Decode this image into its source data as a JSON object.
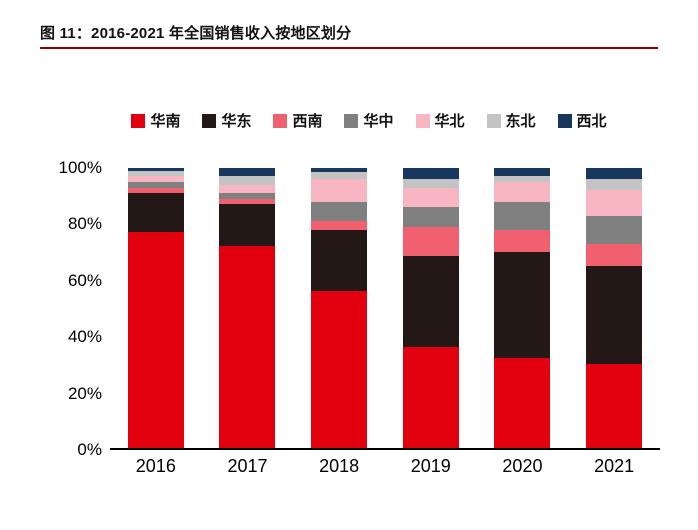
{
  "header": {
    "title": "图 11：2016-2021 年全国销售收入按地区划分",
    "rule_color": "#8b0000"
  },
  "chart_data": {
    "type": "bar",
    "stacked": true,
    "percent": true,
    "title": "2016-2021 年全国销售收入按地区划分",
    "xlabel": "",
    "ylabel": "",
    "ylim": [
      0,
      100
    ],
    "yticks": [
      "0%",
      "20%",
      "40%",
      "60%",
      "80%",
      "100%"
    ],
    "legend_position": "top",
    "grid": false,
    "categories": [
      "2016",
      "2017",
      "2018",
      "2019",
      "2020",
      "2021"
    ],
    "series": [
      {
        "name": "华南",
        "color": "#e2000f",
        "values": [
          77,
          72,
          56,
          36,
          32,
          30
        ]
      },
      {
        "name": "华东",
        "color": "#231815",
        "values": [
          14,
          15,
          22,
          32.5,
          38,
          35
        ]
      },
      {
        "name": "西南",
        "color": "#f1606e",
        "values": [
          2,
          2,
          3,
          10.5,
          8,
          8
        ]
      },
      {
        "name": "华中",
        "color": "#808080",
        "values": [
          2,
          2,
          7,
          7,
          10,
          10
        ]
      },
      {
        "name": "华北",
        "color": "#f8b5c2",
        "values": [
          2,
          3,
          8,
          7,
          7,
          9
        ]
      },
      {
        "name": "东北",
        "color": "#c3c3c3",
        "values": [
          2,
          3,
          2.5,
          3,
          2,
          4
        ]
      },
      {
        "name": "西北",
        "color": "#17375e",
        "values": [
          1,
          3,
          1.5,
          4,
          3,
          4
        ]
      }
    ]
  }
}
